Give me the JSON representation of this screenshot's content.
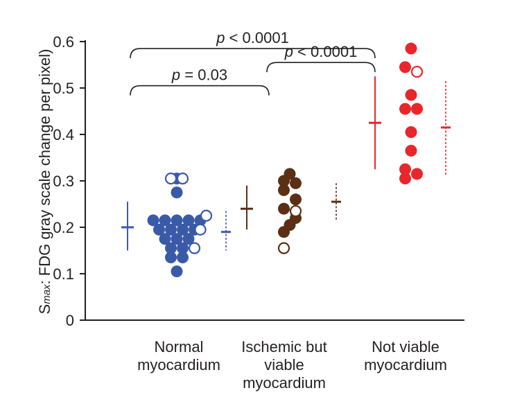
{
  "chart_data": {
    "type": "scatter",
    "ylabel": {
      "prefix": "S",
      "subscript": "max",
      "rest": ": FDG gray scale change per pixel)"
    },
    "ylim": [
      0,
      0.6
    ],
    "yticks": [
      "0",
      "0.1",
      "0.2",
      "0.3",
      "0.4",
      "0.5",
      "0.6"
    ],
    "categories": [
      {
        "lines": [
          "Normal",
          "myocardium"
        ],
        "color": "#3a5aa8"
      },
      {
        "lines": [
          "Ischemic but",
          "viable",
          "myocardium"
        ],
        "color": "#5a2f14"
      },
      {
        "lines": [
          "Not viable",
          "myocardium"
        ],
        "color": "#e8262b"
      }
    ],
    "series": [
      {
        "color": "#3a5aa8",
        "filled": [
          [
            0,
            0.305
          ],
          [
            0,
            0.275
          ],
          [
            -2,
            0.215
          ],
          [
            -1,
            0.215
          ],
          [
            0,
            0.215
          ],
          [
            1,
            0.215
          ],
          [
            2,
            0.215
          ],
          [
            -1.5,
            0.195
          ],
          [
            -0.5,
            0.195
          ],
          [
            0.5,
            0.195
          ],
          [
            1.5,
            0.195
          ],
          [
            -1,
            0.175
          ],
          [
            0,
            0.175
          ],
          [
            1,
            0.175
          ],
          [
            -0.5,
            0.155
          ],
          [
            0.5,
            0.155
          ],
          [
            -0.5,
            0.135
          ],
          [
            0.5,
            0.135
          ],
          [
            0,
            0.105
          ]
        ],
        "open": [
          [
            -0.5,
            0.305
          ],
          [
            0.5,
            0.305
          ],
          [
            2.5,
            0.225
          ],
          [
            2,
            0.195
          ],
          [
            1.5,
            0.155
          ]
        ],
        "summary_solid": {
          "mean": 0.2,
          "low": 0.15,
          "high": 0.255
        },
        "summary_dashed": {
          "mean": 0.19,
          "low": 0.15,
          "high": 0.235
        }
      },
      {
        "color": "#5a2f14",
        "filled": [
          [
            0,
            0.315
          ],
          [
            -0.5,
            0.3
          ],
          [
            0.5,
            0.295
          ],
          [
            -0.5,
            0.28
          ],
          [
            0.5,
            0.26
          ],
          [
            -0.5,
            0.24
          ],
          [
            0.5,
            0.22
          ],
          [
            0,
            0.205
          ],
          [
            -0.5,
            0.19
          ]
        ],
        "open": [
          [
            0.5,
            0.235
          ],
          [
            -0.5,
            0.155
          ]
        ],
        "summary_solid": {
          "mean": 0.24,
          "low": 0.195,
          "high": 0.29
        },
        "summary_dashed": {
          "mean": 0.255,
          "low": 0.215,
          "high": 0.295
        }
      },
      {
        "color": "#e8262b",
        "filled": [
          [
            0,
            0.585
          ],
          [
            -0.5,
            0.545
          ],
          [
            0,
            0.485
          ],
          [
            -0.5,
            0.455
          ],
          [
            0.5,
            0.455
          ],
          [
            0,
            0.405
          ],
          [
            0,
            0.365
          ],
          [
            -0.5,
            0.325
          ],
          [
            0.5,
            0.315
          ],
          [
            -0.5,
            0.305
          ]
        ],
        "open": [
          [
            0.5,
            0.535
          ]
        ],
        "summary_solid": {
          "mean": 0.425,
          "low": 0.325,
          "high": 0.525
        },
        "summary_dashed": {
          "mean": 0.415,
          "low": 0.31,
          "high": 0.515
        }
      }
    ],
    "annotations": [
      {
        "from": 0,
        "to": 2,
        "y": 0.585,
        "italic": "p",
        "text": " < 0.0001"
      },
      {
        "from": 1,
        "to": 2,
        "y": 0.555,
        "italic": "p",
        "text": " < 0.0001"
      },
      {
        "from": 0,
        "to": 1,
        "y": 0.505,
        "italic": "p",
        "text": " = 0.03"
      }
    ]
  }
}
